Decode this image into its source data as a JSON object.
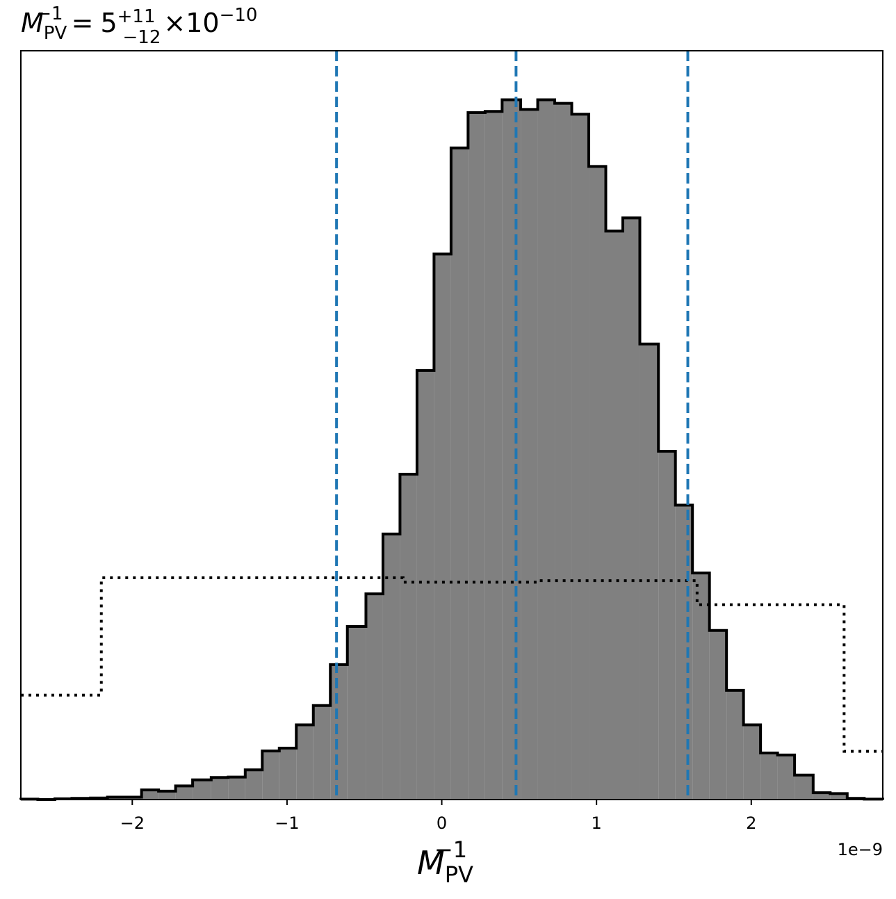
{
  "chart_data": {
    "type": "histogram",
    "title": {
      "var": "M",
      "sub": "PV",
      "sup": "−1",
      "eq": "=",
      "value": "5",
      "err_plus": "+11",
      "err_minus": "−12",
      "times": "×",
      "base": "10",
      "exp": "−10"
    },
    "xlabel": {
      "var": "M",
      "sub": "PV",
      "sup": "−1"
    },
    "ylabel": "",
    "x_offset_label": "1e−9",
    "x_scale": 1e-09,
    "xlim": [
      -2.72,
      2.85
    ],
    "ylim": [
      0,
      1.07
    ],
    "x_ticks": [
      {
        "value": -2,
        "label": "−2"
      },
      {
        "value": -1,
        "label": "−1"
      },
      {
        "value": 0,
        "label": "0"
      },
      {
        "value": 1,
        "label": "1"
      },
      {
        "value": 2,
        "label": "2"
      }
    ],
    "grid": false,
    "posterior": {
      "bin_edges": [
        -2.72,
        -2.61,
        -2.5,
        -2.39,
        -2.27,
        -2.16,
        -2.05,
        -1.94,
        -1.83,
        -1.72,
        -1.61,
        -1.49,
        -1.38,
        -1.27,
        -1.16,
        -1.05,
        -0.94,
        -0.83,
        -0.72,
        -0.61,
        -0.49,
        -0.38,
        -0.27,
        -0.16,
        -0.05,
        0.06,
        0.17,
        0.28,
        0.39,
        0.51,
        0.62,
        0.73,
        0.84,
        0.95,
        1.06,
        1.17,
        1.28,
        1.4,
        1.51,
        1.62,
        1.73,
        1.84,
        1.95,
        2.06,
        2.17,
        2.28,
        2.4,
        2.51,
        2.62,
        2.73,
        2.85
      ],
      "density": [
        0.001,
        0.0,
        0.002,
        0.003,
        0.004,
        0.006,
        0.006,
        0.024,
        0.021,
        0.034,
        0.049,
        0.055,
        0.056,
        0.074,
        0.121,
        0.128,
        0.186,
        0.234,
        0.336,
        0.431,
        0.512,
        0.661,
        0.81,
        1.068,
        1.358,
        1.622,
        1.71,
        1.713,
        1.742,
        1.718,
        1.742,
        1.733,
        1.706,
        1.576,
        1.415,
        1.448,
        1.134,
        0.867,
        0.733,
        0.564,
        0.421,
        0.272,
        0.186,
        0.116,
        0.111,
        0.061,
        0.017,
        0.015,
        0.003,
        0.001
      ],
      "fill_color": "#808080",
      "edge_color": "#000000"
    },
    "prior": {
      "bin_edges": [
        -2.72,
        -2.2,
        -0.25,
        0.62,
        1.65,
        2.6,
        2.85
      ],
      "density": [
        0.26,
        0.552,
        0.541,
        0.545,
        0.485,
        0.12
      ],
      "line_color": "#000000",
      "line_style": "dotted"
    },
    "quantiles": {
      "values": [
        -0.68,
        0.48,
        1.59
      ],
      "color": "#1f77b4",
      "line_style": "dashed"
    }
  }
}
